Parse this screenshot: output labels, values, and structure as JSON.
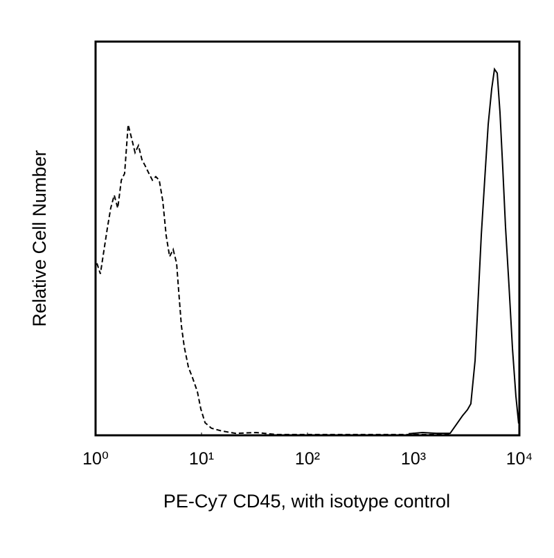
{
  "chart_data": {
    "type": "line",
    "xlabel": "PE-Cy7 CD45, with isotype control",
    "ylabel": "Relative Cell Number",
    "xscale": "log",
    "xlim": [
      1,
      10000
    ],
    "xticks": [
      {
        "value": 1,
        "label": "10⁰"
      },
      {
        "value": 10,
        "label": "10¹"
      },
      {
        "value": 100,
        "label": "10²"
      },
      {
        "value": 1000,
        "label": "10³"
      },
      {
        "value": 10000,
        "label": "10⁴"
      }
    ],
    "ylim": [
      0,
      100
    ],
    "grid": false,
    "series": [
      {
        "color": "#000000",
        "dashed": true,
        "x": [
          1.03,
          1.11,
          1.2,
          1.29,
          1.39,
          1.5,
          1.62,
          1.75,
          1.88,
          2.03,
          2.19,
          2.36,
          2.54,
          2.74,
          2.96,
          3.19,
          3.44,
          3.7,
          3.99,
          4.31,
          4.64,
          5.0,
          5.4,
          5.82,
          6.09,
          6.46,
          6.87,
          7.52,
          8.23,
          9.14,
          9.85,
          10.8,
          12.4,
          15.5,
          20.9,
          32.8,
          51.5,
          109,
          493,
          2220
        ],
        "values": [
          43.7,
          41,
          47,
          52.5,
          57.7,
          61,
          57.7,
          64.8,
          66.5,
          78.9,
          75.4,
          71.8,
          73.6,
          70,
          68.3,
          66.5,
          64.8,
          65.7,
          64.8,
          59.5,
          50.7,
          45.4,
          47.2,
          43.7,
          36.6,
          27.8,
          22.5,
          17.3,
          14.6,
          11.1,
          6.7,
          3.2,
          1.8,
          1.1,
          0.5,
          0.7,
          0.2,
          0.2,
          0.2,
          0.2
        ]
      },
      {
        "color": "#000000",
        "dashed": false,
        "x": [
          900,
          1216,
          1644,
          2220,
          2582,
          2911,
          3236,
          3483,
          3819,
          4055,
          4374,
          4710,
          5080,
          5480,
          5821,
          6180,
          6561,
          6966,
          7396,
          7980,
          8610,
          9268,
          9840
        ],
        "values": [
          0.4,
          0.7,
          0.5,
          0.5,
          3,
          5,
          6.5,
          8,
          19,
          33,
          51,
          65,
          79,
          88,
          93,
          92,
          82,
          68,
          53,
          38,
          22,
          10,
          3
        ]
      }
    ]
  }
}
